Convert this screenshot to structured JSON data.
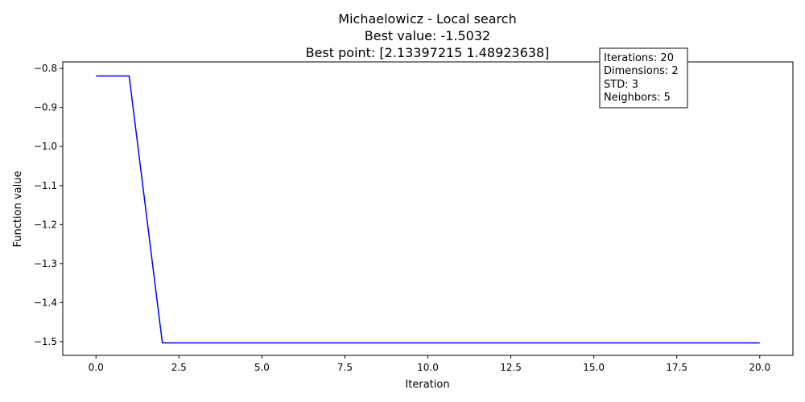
{
  "chart_data": {
    "type": "line",
    "title_lines": [
      "Michaelowicz - Local search",
      "Best value: -1.5032",
      "Best point: [2.13397215 1.48923638]"
    ],
    "xlabel": "Iteration",
    "ylabel": "Function value",
    "xlim": [
      -1.0,
      21.0
    ],
    "ylim": [
      -1.5352,
      -0.7832
    ],
    "xticks": [
      0.0,
      2.5,
      5.0,
      7.5,
      10.0,
      12.5,
      15.0,
      17.5,
      20.0
    ],
    "xtick_labels": [
      "0.0",
      "2.5",
      "5.0",
      "7.5",
      "10.0",
      "12.5",
      "15.0",
      "17.5",
      "20.0"
    ],
    "yticks": [
      -0.8,
      -0.9,
      -1.0,
      -1.1,
      -1.2,
      -1.3,
      -1.4,
      -1.5
    ],
    "ytick_labels": [
      "−0.8",
      "−0.9",
      "−1.0",
      "−1.1",
      "−1.2",
      "−1.3",
      "−1.4",
      "−1.5"
    ],
    "grid": false,
    "series": [
      {
        "color": "#0000ff",
        "x": [
          0,
          1,
          2,
          3,
          4,
          5,
          6,
          7,
          8,
          9,
          10,
          11,
          12,
          13,
          14,
          15,
          16,
          17,
          18,
          19,
          20
        ],
        "y": [
          -0.8192,
          -0.8192,
          -1.5032,
          -1.5032,
          -1.5032,
          -1.5032,
          -1.5032,
          -1.5032,
          -1.5032,
          -1.5032,
          -1.5032,
          -1.5032,
          -1.5032,
          -1.5032,
          -1.5032,
          -1.5032,
          -1.5032,
          -1.5032,
          -1.5032,
          -1.5032,
          -1.5032
        ]
      }
    ],
    "info_box": {
      "placement": "top-right",
      "lines": [
        "Iterations: 20",
        "Dimensions: 2",
        "STD: 3",
        "Neighbors: 5"
      ]
    }
  }
}
